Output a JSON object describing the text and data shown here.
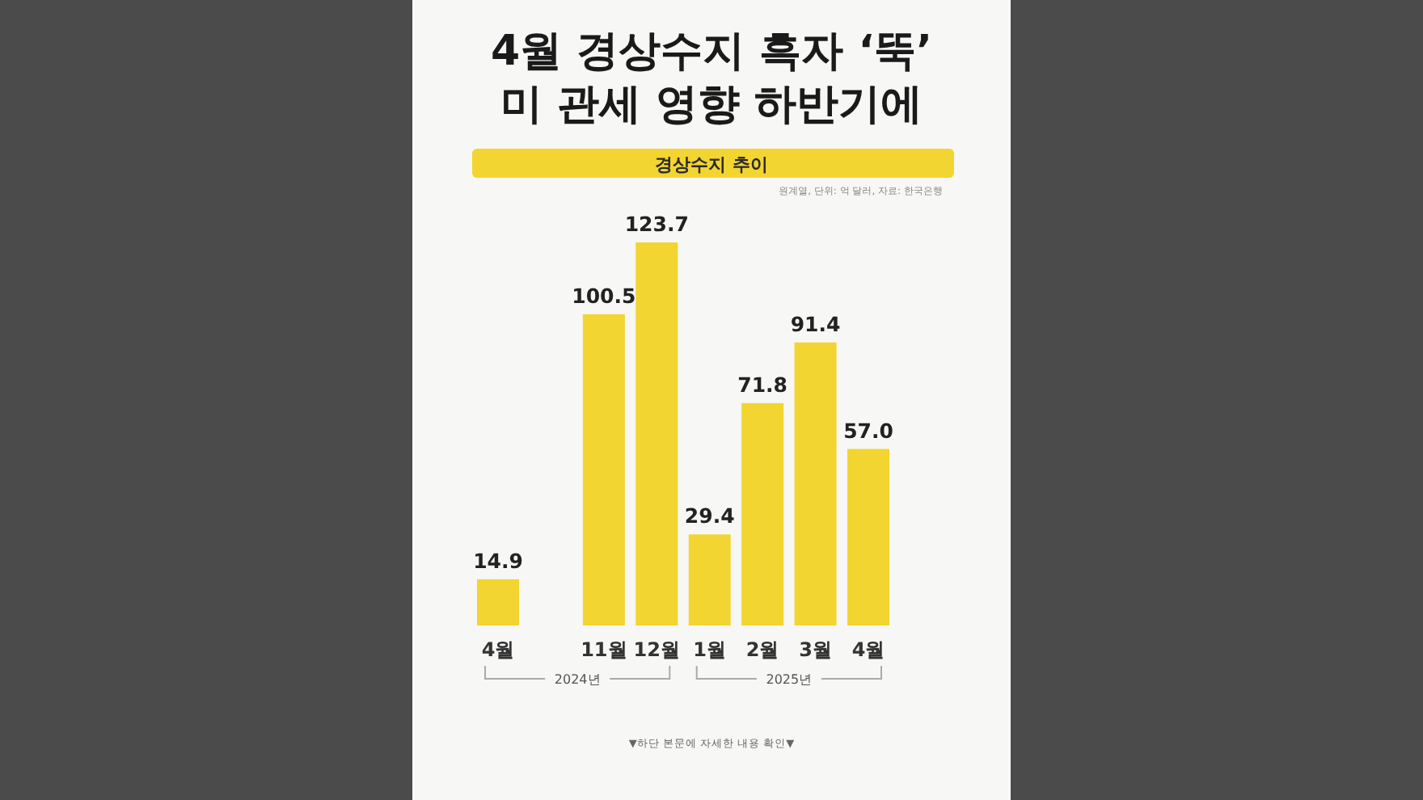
{
  "chart_data": {
    "type": "bar",
    "title": "4월 경상수지 흑자 ‘뚝’\n미 관세 영향 하반기에",
    "subtitle": "경상수지 추이",
    "categories": [
      "4월",
      null,
      "11월",
      "12월",
      "1월",
      "2월",
      "3월",
      "4월"
    ],
    "values": [
      14.9,
      null,
      100.5,
      123.7,
      29.4,
      71.8,
      91.4,
      57.0
    ],
    "value_labels": [
      "14.9",
      null,
      "100.5",
      "123.7",
      "29.4",
      "71.8",
      "91.4",
      "57.0"
    ],
    "color": "#f2d530",
    "annotations": [
      "원계열, 단위: 억 달러, 자료: 한국은행",
      "2024년",
      "2025년",
      "▼하단 본문에 자세한 내용 확인▼"
    ]
  }
}
